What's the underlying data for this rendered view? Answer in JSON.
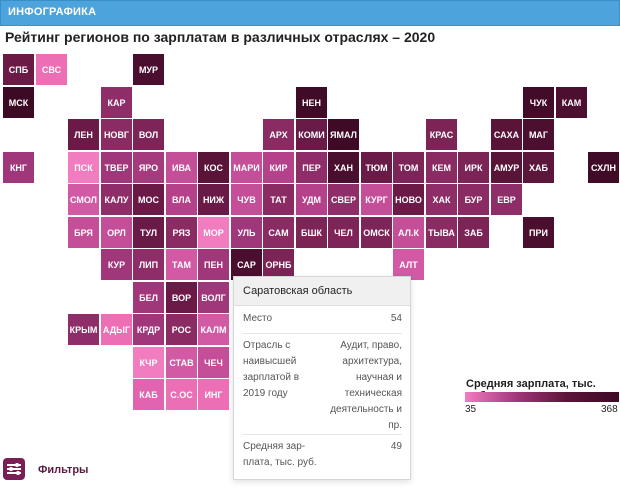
{
  "header": {
    "section_label": "ИНФОГРАФИКА"
  },
  "page_title": "Рейтинг регионов по зарплатам в различных отраслях – 2020",
  "colors": {
    "accent_bar": "#4da3dc",
    "filter_button": "#7a1f55"
  },
  "cells": [
    {
      "label": "СПБ",
      "row": 0,
      "col": 0,
      "color": "#6b1a45"
    },
    {
      "label": "СВС",
      "row": 0,
      "col": 1,
      "color": "#ec6fb5"
    },
    {
      "label": "МУР",
      "row": 0,
      "col": 4,
      "color": "#4a0e2e"
    },
    {
      "label": "МСК",
      "row": 1,
      "col": 0,
      "color": "#3d0a25"
    },
    {
      "label": "КАР",
      "row": 1,
      "col": 3,
      "color": "#8e2d67"
    },
    {
      "label": "НЕН",
      "row": 1,
      "col": 9,
      "color": "#3f0b27"
    },
    {
      "label": "ЧУК",
      "row": 1,
      "col": 16,
      "color": "#420b28"
    },
    {
      "label": "КАМ",
      "row": 1,
      "col": 17,
      "color": "#4c0f2f"
    },
    {
      "label": "ЛЕН",
      "row": 2,
      "col": 2,
      "color": "#6b1a48"
    },
    {
      "label": "НОВГ",
      "row": 2,
      "col": 3,
      "color": "#8a2c63"
    },
    {
      "label": "ВОЛ",
      "row": 2,
      "col": 4,
      "color": "#7d2558"
    },
    {
      "label": "АРХ",
      "row": 2,
      "col": 8,
      "color": "#8a2c63"
    },
    {
      "label": "КОМИ",
      "row": 2,
      "col": 9,
      "color": "#6a1a47"
    },
    {
      "label": "ЯМАЛ",
      "row": 2,
      "col": 10,
      "color": "#3e0a26"
    },
    {
      "label": "КРАС",
      "row": 2,
      "col": 13,
      "color": "#7d2457"
    },
    {
      "label": "САХА",
      "row": 2,
      "col": 15,
      "color": "#5a1438"
    },
    {
      "label": "МАГ",
      "row": 2,
      "col": 16,
      "color": "#4d0f30"
    },
    {
      "label": "КНГ",
      "row": 3,
      "col": 0,
      "color": "#a0377a"
    },
    {
      "label": "ПСК",
      "row": 3,
      "col": 2,
      "color": "#f27cc0"
    },
    {
      "label": "ТВЕР",
      "row": 3,
      "col": 3,
      "color": "#a0377a"
    },
    {
      "label": "ЯРО",
      "row": 3,
      "col": 4,
      "color": "#a53b7d"
    },
    {
      "label": "ИВА",
      "row": 3,
      "col": 5,
      "color": "#c44e98"
    },
    {
      "label": "КОС",
      "row": 3,
      "col": 6,
      "color": "#5a1438"
    },
    {
      "label": "МАРИ",
      "row": 3,
      "col": 7,
      "color": "#c44e98"
    },
    {
      "label": "КИР",
      "row": 3,
      "col": 8,
      "color": "#b4418a"
    },
    {
      "label": "ПЕР",
      "row": 3,
      "col": 9,
      "color": "#8e2d67"
    },
    {
      "label": "ХАН",
      "row": 3,
      "col": 10,
      "color": "#4a0e2e"
    },
    {
      "label": "ТЮМ",
      "row": 3,
      "col": 11,
      "color": "#6a1a47"
    },
    {
      "label": "ТОМ",
      "row": 3,
      "col": 12,
      "color": "#7d2558"
    },
    {
      "label": "КЕМ",
      "row": 3,
      "col": 13,
      "color": "#8a2c63"
    },
    {
      "label": "ИРК",
      "row": 3,
      "col": 14,
      "color": "#7d2457"
    },
    {
      "label": "АМУР",
      "row": 3,
      "col": 15,
      "color": "#5a1438"
    },
    {
      "label": "ХАБ",
      "row": 3,
      "col": 16,
      "color": "#5c163b"
    },
    {
      "label": "СХЛН",
      "row": 3,
      "col": 18,
      "color": "#3f0b27"
    },
    {
      "label": "СМОЛ",
      "row": 4,
      "col": 2,
      "color": "#d25aa5"
    },
    {
      "label": "КАЛУ",
      "row": 4,
      "col": 3,
      "color": "#8e2d67"
    },
    {
      "label": "МОС",
      "row": 4,
      "col": 4,
      "color": "#6b1a48"
    },
    {
      "label": "ВЛА",
      "row": 4,
      "col": 5,
      "color": "#b4418a"
    },
    {
      "label": "НИЖ",
      "row": 4,
      "col": 6,
      "color": "#6a1a47"
    },
    {
      "label": "ЧУВ",
      "row": 4,
      "col": 7,
      "color": "#c44e98"
    },
    {
      "label": "ТАТ",
      "row": 4,
      "col": 8,
      "color": "#8a2c63"
    },
    {
      "label": "УДМ",
      "row": 4,
      "col": 9,
      "color": "#b4418a"
    },
    {
      "label": "СВЕР",
      "row": 4,
      "col": 10,
      "color": "#8e2d67"
    },
    {
      "label": "КУРГ",
      "row": 4,
      "col": 11,
      "color": "#c44e98"
    },
    {
      "label": "НОВО",
      "row": 4,
      "col": 12,
      "color": "#6b1a48"
    },
    {
      "label": "ХАК",
      "row": 4,
      "col": 13,
      "color": "#8e2d67"
    },
    {
      "label": "БУР",
      "row": 4,
      "col": 14,
      "color": "#8a2c63"
    },
    {
      "label": "ЕВР",
      "row": 4,
      "col": 15,
      "color": "#8e2d67"
    },
    {
      "label": "БРЯ",
      "row": 5,
      "col": 2,
      "color": "#c44e98"
    },
    {
      "label": "ОРЛ",
      "row": 5,
      "col": 3,
      "color": "#c44e98"
    },
    {
      "label": "ТУЛ",
      "row": 5,
      "col": 4,
      "color": "#6a1a47"
    },
    {
      "label": "РЯЗ",
      "row": 5,
      "col": 5,
      "color": "#8a2c63"
    },
    {
      "label": "МОР",
      "row": 5,
      "col": 6,
      "color": "#f27cc0"
    },
    {
      "label": "УЛЬ",
      "row": 5,
      "col": 7,
      "color": "#a0377a"
    },
    {
      "label": "САМ",
      "row": 5,
      "col": 8,
      "color": "#8a2c63"
    },
    {
      "label": "БШК",
      "row": 5,
      "col": 9,
      "color": "#7d2457"
    },
    {
      "label": "ЧЕЛ",
      "row": 5,
      "col": 10,
      "color": "#7d2558"
    },
    {
      "label": "ОМСК",
      "row": 5,
      "col": 11,
      "color": "#7d2558"
    },
    {
      "label": "АЛ.К",
      "row": 5,
      "col": 12,
      "color": "#c44e98"
    },
    {
      "label": "ТЫВА",
      "row": 5,
      "col": 13,
      "color": "#8a2c63"
    },
    {
      "label": "ЗАБ",
      "row": 5,
      "col": 14,
      "color": "#7d2457"
    },
    {
      "label": "ПРИ",
      "row": 5,
      "col": 16,
      "color": "#4a0e2e"
    },
    {
      "label": "КУР",
      "row": 6,
      "col": 3,
      "color": "#a0377a"
    },
    {
      "label": "ЛИП",
      "row": 6,
      "col": 4,
      "color": "#8e2d67"
    },
    {
      "label": "ТАМ",
      "row": 6,
      "col": 5,
      "color": "#d25aa5"
    },
    {
      "label": "ПЕН",
      "row": 6,
      "col": 6,
      "color": "#a0377a"
    },
    {
      "label": "САР",
      "row": 6,
      "col": 7,
      "color": "#4a0e2e"
    },
    {
      "label": "ОРНБ",
      "row": 6,
      "col": 8,
      "color": "#7d2457"
    },
    {
      "label": "АЛТ",
      "row": 6,
      "col": 12,
      "color": "#d25aa5"
    },
    {
      "label": "БЕЛ",
      "row": 7,
      "col": 4,
      "color": "#a0377a"
    },
    {
      "label": "ВОР",
      "row": 7,
      "col": 5,
      "color": "#6b1a48"
    },
    {
      "label": "ВОЛГ",
      "row": 7,
      "col": 6,
      "color": "#a0377a"
    },
    {
      "label": "КРЫМ",
      "row": 8,
      "col": 2,
      "color": "#8e2d67"
    },
    {
      "label": "АДЫГ",
      "row": 8,
      "col": 3,
      "color": "#ec6fb5"
    },
    {
      "label": "КРДР",
      "row": 8,
      "col": 4,
      "color": "#a0377a"
    },
    {
      "label": "РОС",
      "row": 8,
      "col": 5,
      "color": "#8a2c63"
    },
    {
      "label": "КАЛМ",
      "row": 8,
      "col": 6,
      "color": "#d25aa5"
    },
    {
      "label": "КЧР",
      "row": 9,
      "col": 4,
      "color": "#f27cc0"
    },
    {
      "label": "СТАВ",
      "row": 9,
      "col": 5,
      "color": "#d25aa5"
    },
    {
      "label": "ЧЕЧ",
      "row": 9,
      "col": 6,
      "color": "#c44e98"
    },
    {
      "label": "КАБ",
      "row": 10,
      "col": 4,
      "color": "#e264b0"
    },
    {
      "label": "С.ОС",
      "row": 10,
      "col": 5,
      "color": "#ec6fb5"
    },
    {
      "label": "ИНГ",
      "row": 10,
      "col": 6,
      "color": "#ec6fb5"
    }
  ],
  "tooltip": {
    "region": "Саратовская область",
    "rank_label": "Место",
    "rank_value": "54",
    "industry_label": [
      "Отрасль с",
      "наивысшей",
      "зарплатой в",
      "2019 году"
    ],
    "industry_value": [
      "Аудит, право,",
      "архитектура,",
      "научная и",
      "техническая",
      "деятельность и",
      "пр."
    ],
    "salary_label": [
      "Средняя зар-",
      "плата, тыс. руб."
    ],
    "salary_value": "49"
  },
  "legend": {
    "title": "Средняя зарплата, тыс. руб.",
    "min": "35",
    "max": "368",
    "color_low": "#f27cc0",
    "color_high": "#3d0a25"
  },
  "filters": {
    "label": "Фильтры"
  }
}
